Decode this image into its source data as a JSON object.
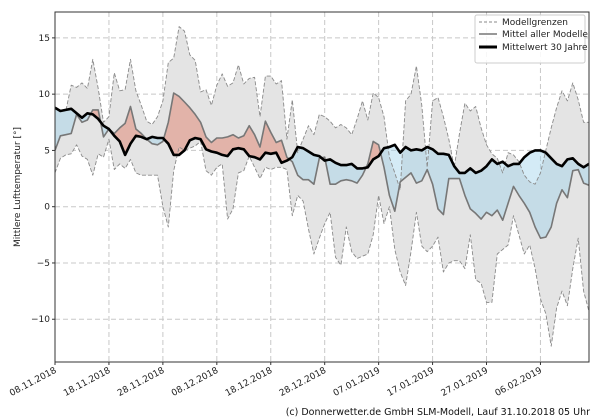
{
  "chart_data": {
    "type": "area",
    "title": "",
    "ylabel": "Mittlere Lufttemperatur [°]",
    "xlabel": "",
    "start_date": "08.11.2018",
    "x_unit": "days since start",
    "xlim": [
      0,
      99
    ],
    "ylim": [
      -13.8,
      17.3
    ],
    "grid": true,
    "yticks": [
      -10,
      -5,
      0,
      5,
      10,
      15
    ],
    "ytick_labels": [
      "−10",
      "−5",
      "0",
      "5",
      "10",
      "15"
    ],
    "xticks": [
      0,
      10,
      20,
      30,
      40,
      50,
      60,
      70,
      80,
      90
    ],
    "xtick_labels": [
      "08.11.2018",
      "18.11.2018",
      "28.11.2018",
      "08.12.2018",
      "18.12.2018",
      "28.12.2018",
      "07.01.2019",
      "17.01.2019",
      "27.01.2019",
      "06.02.2019"
    ],
    "legend_position": "top-right",
    "legend": [
      "Modellgrenzen",
      "Mittel aller Modelle",
      "Mittelwert 30 Jahre"
    ],
    "colors": {
      "band": "#e4e4e4",
      "band_edge": "#8a8a8a",
      "mean": "#777777",
      "climate": "#000000",
      "warm": "#e08a78",
      "cold": "#9fd3ea"
    },
    "series": [
      {
        "name": "Modellgrenzen (max)",
        "values": [
          8.7,
          8.6,
          8.5,
          10.8,
          10.6,
          11.0,
          10.5,
          13.1,
          10.5,
          7.5,
          8.0,
          11.9,
          10.3,
          10.4,
          13.1,
          10.3,
          9.0,
          7.6,
          7.3,
          8.0,
          9.4,
          12.8,
          13.2,
          16.0,
          15.6,
          13.5,
          13.0,
          10.2,
          10.4,
          9.0,
          10.8,
          11.8,
          10.7,
          11.0,
          12.6,
          10.9,
          11.4,
          11.5,
          8.0,
          11.6,
          11.6,
          10.9,
          11.2,
          6.0,
          9.5,
          4.8,
          6.0,
          7.2,
          6.4,
          8.2,
          8.0,
          7.6,
          7.0,
          7.3,
          7.0,
          6.4,
          7.8,
          9.4,
          7.7,
          10.1,
          9.7,
          8.0,
          4.4,
          3.0,
          1.5,
          9.4,
          10.0,
          12.5,
          9.0,
          3.5,
          9.4,
          9.7,
          8.0,
          6.0,
          3.5,
          6.5,
          9.2,
          8.5,
          8.9,
          7.0,
          5.5,
          4.7,
          4.3,
          3.0,
          4.8,
          4.6,
          4.0,
          2.8,
          2.2,
          2.0,
          3.0,
          5.0,
          7.0,
          8.8,
          10.3,
          9.4,
          11.0,
          9.5,
          7.5,
          7.5
        ]
      },
      {
        "name": "Modellgrenzen (min)",
        "values": [
          3.0,
          4.3,
          4.6,
          4.7,
          5.5,
          4.5,
          4.2,
          2.8,
          4.7,
          4.4,
          6.0,
          3.3,
          3.8,
          3.4,
          4.2,
          3.0,
          2.8,
          2.8,
          2.8,
          2.8,
          0.0,
          -1.8,
          3.2,
          5.3,
          5.0,
          5.2,
          5.4,
          5.8,
          3.2,
          2.8,
          3.5,
          3.8,
          -1.1,
          -0.2,
          3.0,
          3.2,
          4.5,
          3.5,
          2.5,
          3.5,
          3.3,
          3.5,
          3.5,
          3.3,
          -0.8,
          1.0,
          0.5,
          -2.0,
          -4.2,
          -2.8,
          -1.5,
          -0.5,
          -4.5,
          -5.2,
          -1.8,
          -4.0,
          -4.6,
          -4.4,
          -4.2,
          -2.5,
          1.0,
          -1.5,
          0.0,
          -3.8,
          -5.8,
          -7.0,
          -4.0,
          -0.5,
          -3.5,
          -4.0,
          -3.5,
          -2.7,
          -5.8,
          -5.0,
          -4.8,
          -4.8,
          -5.5,
          -2.5,
          -6.5,
          -6.8,
          -8.5,
          -8.5,
          -4.2,
          -3.8,
          -3.4,
          -0.8,
          -2.5,
          -4.2,
          -3.4,
          -5.5,
          -8.2,
          -9.5,
          -12.4,
          -9.0,
          -7.5,
          -8.8,
          -5.5,
          -2.8,
          -7.5,
          -9.3
        ]
      },
      {
        "name": "Mittel aller Modelle",
        "values": [
          5.0,
          6.3,
          6.4,
          6.5,
          8.2,
          7.5,
          7.7,
          8.6,
          8.6,
          6.2,
          6.9,
          6.5,
          7.0,
          7.4,
          8.9,
          6.9,
          6.5,
          6.0,
          5.6,
          5.5,
          5.8,
          7.5,
          10.1,
          9.8,
          9.3,
          8.8,
          8.2,
          7.5,
          6.2,
          5.7,
          6.1,
          6.1,
          6.2,
          6.4,
          6.1,
          6.3,
          7.2,
          6.4,
          5.3,
          7.6,
          6.6,
          5.7,
          5.9,
          4.4,
          4.0,
          2.8,
          2.4,
          2.4,
          2.0,
          4.3,
          4.4,
          2.0,
          2.0,
          2.3,
          2.4,
          2.3,
          2.1,
          2.8,
          3.8,
          5.8,
          5.5,
          3.5,
          1.0,
          -0.4,
          2.2,
          2.6,
          3.0,
          2.1,
          2.3,
          3.3,
          2.0,
          -0.2,
          -0.7,
          2.5,
          2.5,
          2.5,
          1.0,
          -0.2,
          -0.6,
          -1.1,
          -0.5,
          -0.8,
          -0.3,
          -1.2,
          0.3,
          1.8,
          1.0,
          0.3,
          -0.5,
          -1.8,
          -2.8,
          -2.7,
          -1.8,
          0.3,
          1.5,
          0.8,
          3.2,
          3.3,
          2.1,
          1.9
        ]
      },
      {
        "name": "Mittelwert 30 Jahre",
        "values": [
          8.8,
          8.5,
          8.6,
          8.7,
          8.3,
          7.9,
          8.3,
          8.2,
          7.8,
          7.2,
          6.9,
          6.3,
          5.8,
          4.6,
          5.6,
          6.3,
          6.2,
          6.0,
          6.2,
          6.1,
          6.1,
          5.6,
          4.6,
          4.6,
          5.0,
          5.9,
          6.1,
          6.0,
          5.1,
          4.9,
          4.8,
          4.6,
          4.5,
          5.1,
          5.2,
          5.1,
          4.5,
          4.4,
          4.2,
          4.8,
          4.7,
          4.8,
          3.9,
          4.1,
          4.4,
          5.3,
          5.2,
          4.9,
          4.6,
          4.5,
          4.1,
          4.2,
          3.9,
          3.7,
          3.7,
          3.8,
          3.4,
          3.4,
          3.5,
          4.2,
          4.5,
          5.2,
          5.3,
          5.5,
          4.8,
          5.3,
          5.0,
          5.1,
          5.0,
          5.3,
          5.1,
          4.7,
          4.7,
          4.6,
          3.6,
          3.0,
          3.0,
          3.4,
          3.0,
          3.2,
          3.6,
          4.2,
          3.8,
          4.0,
          3.6,
          3.8,
          3.8,
          4.4,
          4.8,
          5.0,
          5.0,
          4.8,
          4.3,
          3.8,
          3.6,
          4.2,
          4.3,
          3.8,
          3.5,
          3.8
        ]
      }
    ]
  },
  "footer": "(c) Donnerwetter.de GmbH SLM-Modell, Lauf 31.10.2018 05 Uhr"
}
